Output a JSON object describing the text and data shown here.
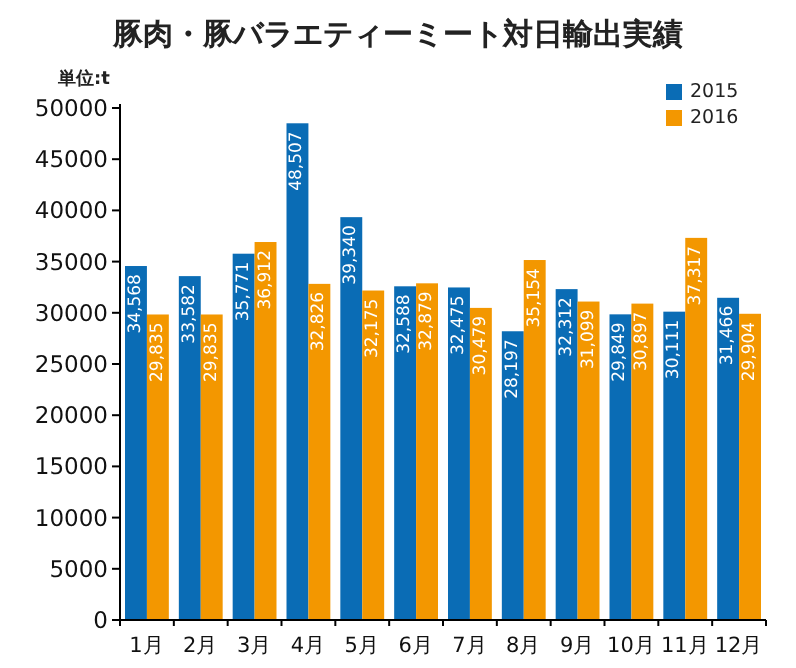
{
  "chart_data": {
    "type": "bar",
    "title": "豚肉・豚バラエティーミート対日輸出実績",
    "annotations": [
      "単位:t"
    ],
    "categories": [
      "1月",
      "2月",
      "3月",
      "4月",
      "5月",
      "6月",
      "7月",
      "8月",
      "9月",
      "10月",
      "11月",
      "12月"
    ],
    "series": [
      {
        "name": "2015",
        "color": "#0a6cb5",
        "values": [
          34568,
          33582,
          35771,
          48507,
          39340,
          32588,
          32475,
          28197,
          32312,
          29849,
          30111,
          31466
        ],
        "value_labels": [
          "34,568",
          "33,582",
          "35,771",
          "48,507",
          "39,340",
          "32,588",
          "32,475",
          "28,197",
          "32,312",
          "29,849",
          "30,111",
          "31,466"
        ]
      },
      {
        "name": "2016",
        "color": "#f39700",
        "values": [
          29835,
          29835,
          36912,
          32826,
          32175,
          32879,
          30479,
          35154,
          31099,
          30897,
          37317,
          29904
        ],
        "value_labels": [
          "29,835",
          "29,835",
          "36,912",
          "32,826",
          "32,175",
          "32,879",
          "30,479",
          "35,154",
          "31,099",
          "30,897",
          "37,317",
          "29,904"
        ]
      }
    ],
    "ylim": [
      0,
      50000
    ],
    "yticks": [
      0,
      5000,
      10000,
      15000,
      20000,
      25000,
      30000,
      35000,
      40000,
      45000,
      50000
    ],
    "legend": "top right",
    "grid": false
  }
}
